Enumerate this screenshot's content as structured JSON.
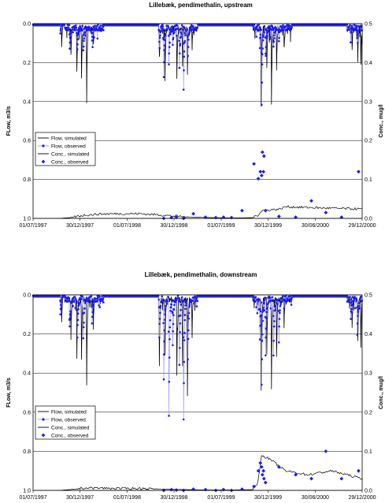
{
  "chart_data": [
    {
      "type": "line",
      "title": "Lillebæk, pendimethalin, upstream",
      "ylabel_left": "FLow, m3/s",
      "ylabel_right": "Conc., mug/l",
      "left_axis_inverted": true,
      "ylim_left": [
        0,
        1
      ],
      "ylim_right": [
        0,
        0.5
      ],
      "yticks_left": [
        "0.0",
        "0.2",
        "0.4",
        "0.6",
        "0.8",
        "1.0"
      ],
      "yticks_right": [
        "0.5",
        "0.4",
        "0.3",
        "0.2",
        "0.1",
        "0.0"
      ],
      "xlim": [
        "1997-07-01",
        "2000-12-29"
      ],
      "xticks": [
        "01/07/1997",
        "30/12/1997",
        "01/07/1998",
        "30/12/1998",
        "01/07/1999",
        "30/12/1999",
        "30/06/2000",
        "29/12/2000"
      ],
      "grid": "horizontal",
      "legend_position": "bottom-left",
      "legend": [
        "Flow, simulated",
        "Flow, observed",
        "Conc., simulated",
        "Conc., observed"
      ],
      "colors": {
        "sim": "#000000",
        "obs": "#1a1aff",
        "obs_line": "#9a9aff"
      },
      "series": [
        {
          "name": "Flow, simulated",
          "axis": "left",
          "base": 0.012,
          "peaks": [
            [
              "1997-10-20",
              0.12
            ],
            [
              "1997-11-25",
              0.15
            ],
            [
              "1997-12-18",
              0.22
            ],
            [
              "1998-01-05",
              0.26
            ],
            [
              "1998-01-25",
              0.38
            ],
            [
              "1998-02-20",
              0.1
            ],
            [
              "1998-11-03",
              0.17
            ],
            [
              "1998-11-25",
              0.28
            ],
            [
              "1999-01-10",
              0.26
            ],
            [
              "1999-02-01",
              0.2
            ],
            [
              "1999-02-20",
              0.24
            ],
            [
              "1999-03-10",
              0.12
            ],
            [
              "1999-12-03",
              0.42
            ],
            [
              "1999-12-25",
              0.22
            ],
            [
              "2000-01-12",
              0.38
            ],
            [
              "2000-02-01",
              0.23
            ],
            [
              "2000-03-01",
              0.12
            ],
            [
              "2000-11-20",
              0.12
            ],
            [
              "2000-12-12",
              0.18
            ],
            [
              "2000-12-24",
              0.2
            ]
          ]
        },
        {
          "name": "Flow, observed",
          "axis": "left",
          "base": 0.005,
          "peaks": [
            [
              "1997-10-15",
              0.05
            ],
            [
              "1997-11-20",
              0.1
            ],
            [
              "1997-12-20",
              0.13
            ],
            [
              "1998-01-12",
              0.13
            ],
            [
              "1998-02-15",
              0.08
            ],
            [
              "1998-11-03",
              0.09
            ],
            [
              "1998-11-20",
              0.25
            ],
            [
              "1998-12-10",
              0.2
            ],
            [
              "1998-12-25",
              0.1
            ],
            [
              "1999-01-20",
              0.2
            ],
            [
              "1999-02-05",
              0.32
            ],
            [
              "1999-02-22",
              0.14
            ],
            [
              "1999-11-28",
              0.1
            ],
            [
              "1999-12-05",
              0.4
            ],
            [
              "1999-12-20",
              0.15
            ],
            [
              "2000-01-20",
              0.1
            ],
            [
              "2000-02-10",
              0.07
            ],
            [
              "2000-11-15",
              0.04
            ],
            [
              "2000-12-10",
              0.06
            ]
          ]
        },
        {
          "name": "Conc., simulated",
          "axis": "right",
          "points": [
            [
              "1997-10-10",
              0
            ],
            [
              "1997-11-20",
              0.002
            ],
            [
              "1998-01-15",
              0.008
            ],
            [
              "1998-03-15",
              0.011
            ],
            [
              "1998-05-15",
              0.012
            ],
            [
              "1998-08-15",
              0.012
            ],
            [
              "1998-10-15",
              0.01
            ],
            [
              "1998-12-10",
              0.007
            ],
            [
              "1999-02-15",
              0.004
            ],
            [
              "1999-05-15",
              0.002
            ],
            [
              "1999-08-15",
              0.001
            ],
            [
              "1999-11-01",
              0.002
            ],
            [
              "1999-11-20",
              0.008
            ],
            [
              "1999-12-05",
              0.02
            ],
            [
              "2000-01-05",
              0.022
            ],
            [
              "2000-02-15",
              0.024
            ],
            [
              "2000-03-05",
              0.03
            ],
            [
              "2000-06-01",
              0.028
            ],
            [
              "2000-09-01",
              0.026
            ],
            [
              "2000-12-29",
              0.024
            ]
          ]
        },
        {
          "name": "Conc., observed",
          "axis": "right",
          "points": [
            [
              "1998-11-20",
              0
            ],
            [
              "1998-12-20",
              0.002
            ],
            [
              "1999-01-08",
              0.003
            ],
            [
              "1999-02-05",
              0
            ],
            [
              "1999-03-15",
              0.012
            ],
            [
              "1999-05-01",
              0.003
            ],
            [
              "1999-06-10",
              0.002
            ],
            [
              "1999-07-10",
              0.003
            ],
            [
              "1999-08-10",
              0.002
            ],
            [
              "1999-09-20",
              0.02
            ],
            [
              "1999-11-05",
              0.14
            ],
            [
              "1999-11-22",
              0.102
            ],
            [
              "1999-11-30",
              0.12
            ],
            [
              "1999-12-05",
              0.11
            ],
            [
              "1999-12-08",
              0.17
            ],
            [
              "1999-12-12",
              0.12
            ],
            [
              "1999-12-14",
              0.16
            ],
            [
              "1999-12-20",
              0.02
            ],
            [
              "2000-02-10",
              0.005
            ],
            [
              "2000-04-15",
              0.003
            ],
            [
              "2000-06-15",
              0.045
            ],
            [
              "2000-08-10",
              0.015
            ],
            [
              "2000-10-10",
              0.003
            ],
            [
              "2000-12-15",
              0.12
            ]
          ]
        }
      ]
    },
    {
      "type": "line",
      "title": "Lillebæk, pendimethalin, downstream",
      "ylabel_left": "FLow, m3/s",
      "ylabel_right": "Conc., mug/l",
      "left_axis_inverted": true,
      "ylim_left": [
        0,
        1
      ],
      "ylim_right": [
        0,
        0.5
      ],
      "yticks_left": [
        "0.0",
        "0.2",
        "0.4",
        "0.6",
        "0.8",
        "1.0"
      ],
      "yticks_right": [
        "0.5",
        "0.4",
        "0.3",
        "0.2",
        "0.1",
        "0.0"
      ],
      "xlim": [
        "1997-07-01",
        "2000-12-29"
      ],
      "xticks": [
        "01/07/1997",
        "30/12/1997",
        "01/07/1998",
        "30/12/1998",
        "01/07/1999",
        "30/12/1999",
        "30/06/2000",
        "29/12/2000"
      ],
      "grid": "horizontal",
      "legend_position": "bottom-left",
      "legend": [
        "Flow, simulated",
        "Flow, observed",
        "Conc., simulated",
        "Conc., observed"
      ],
      "colors": {
        "sim": "#000000",
        "obs": "#1a1aff",
        "obs_line": "#9a9aff"
      },
      "series": [
        {
          "name": "Flow, simulated",
          "axis": "left",
          "base": 0.012,
          "peaks": [
            [
              "1997-10-20",
              0.14
            ],
            [
              "1997-11-25",
              0.2
            ],
            [
              "1997-12-18",
              0.3
            ],
            [
              "1998-01-05",
              0.33
            ],
            [
              "1998-01-25",
              0.45
            ],
            [
              "1998-02-20",
              0.16
            ],
            [
              "1998-11-03",
              0.35
            ],
            [
              "1998-11-25",
              0.3
            ],
            [
              "1999-01-10",
              0.4
            ],
            [
              "1999-02-01",
              0.35
            ],
            [
              "1999-02-20",
              0.5
            ],
            [
              "1999-03-10",
              0.2
            ],
            [
              "1999-12-03",
              0.48
            ],
            [
              "1999-12-25",
              0.3
            ],
            [
              "2000-01-12",
              0.47
            ],
            [
              "2000-02-01",
              0.3
            ],
            [
              "2000-03-01",
              0.15
            ],
            [
              "2000-11-20",
              0.15
            ],
            [
              "2000-12-12",
              0.22
            ],
            [
              "2000-12-24",
              0.25
            ]
          ]
        },
        {
          "name": "Flow, observed",
          "axis": "left",
          "base": 0.005,
          "peaks": [
            [
              "1997-10-15",
              0.1
            ],
            [
              "1997-11-20",
              0.15
            ],
            [
              "1997-12-20",
              0.2
            ],
            [
              "1998-01-12",
              0.22
            ],
            [
              "1998-02-15",
              0.12
            ],
            [
              "1998-11-03",
              0.2
            ],
            [
              "1998-11-20",
              0.42
            ],
            [
              "1998-12-10",
              0.6
            ],
            [
              "1998-12-25",
              0.25
            ],
            [
              "1999-01-20",
              0.35
            ],
            [
              "1999-02-05",
              0.63
            ],
            [
              "1999-02-22",
              0.3
            ],
            [
              "1999-11-28",
              0.2
            ],
            [
              "1999-12-05",
              0.45
            ],
            [
              "1999-12-20",
              0.3
            ],
            [
              "2000-01-20",
              0.3
            ],
            [
              "2000-02-10",
              0.2
            ],
            [
              "2000-11-15",
              0.1
            ],
            [
              "2000-12-10",
              0.2
            ]
          ]
        },
        {
          "name": "Conc., simulated",
          "axis": "right",
          "points": [
            [
              "1997-10-10",
              0
            ],
            [
              "1997-11-20",
              0.002
            ],
            [
              "1998-01-15",
              0.006
            ],
            [
              "1998-03-15",
              0.006
            ],
            [
              "1998-05-15",
              0.005
            ],
            [
              "1998-08-15",
              0.005
            ],
            [
              "1998-10-15",
              0.004
            ],
            [
              "1998-12-10",
              0.003
            ],
            [
              "1999-02-15",
              0.002
            ],
            [
              "1999-05-15",
              0.001
            ],
            [
              "1999-08-15",
              0.001
            ],
            [
              "1999-11-01",
              0.002
            ],
            [
              "1999-11-20",
              0.02
            ],
            [
              "1999-12-05",
              0.09
            ],
            [
              "2000-01-05",
              0.08
            ],
            [
              "2000-02-15",
              0.06
            ],
            [
              "2000-03-05",
              0.05
            ],
            [
              "2000-06-01",
              0.04
            ],
            [
              "2000-09-01",
              0.05
            ],
            [
              "2000-12-29",
              0.03
            ]
          ]
        },
        {
          "name": "Conc., observed",
          "axis": "right",
          "points": [
            [
              "1998-11-20",
              0
            ],
            [
              "1998-12-20",
              0.002
            ],
            [
              "1999-01-08",
              0.001
            ],
            [
              "1999-02-05",
              0
            ],
            [
              "1999-03-15",
              0.003
            ],
            [
              "1999-05-01",
              0.002
            ],
            [
              "1999-06-10",
              0
            ],
            [
              "1999-07-10",
              0.002
            ],
            [
              "1999-08-10",
              0
            ],
            [
              "1999-09-20",
              0.003
            ],
            [
              "1999-11-05",
              0.01
            ],
            [
              "1999-11-22",
              0.05
            ],
            [
              "1999-11-30",
              0.07
            ],
            [
              "1999-12-05",
              0.06
            ],
            [
              "1999-12-08",
              0.04
            ],
            [
              "1999-12-12",
              0.05
            ],
            [
              "1999-12-14",
              0.03
            ],
            [
              "1999-12-20",
              0.02
            ],
            [
              "2000-02-10",
              0.06
            ],
            [
              "2000-04-15",
              0.04
            ],
            [
              "2000-06-15",
              0.03
            ],
            [
              "2000-08-10",
              0.1
            ],
            [
              "2000-10-10",
              0.03
            ],
            [
              "2000-12-15",
              0.05
            ]
          ]
        }
      ]
    }
  ]
}
